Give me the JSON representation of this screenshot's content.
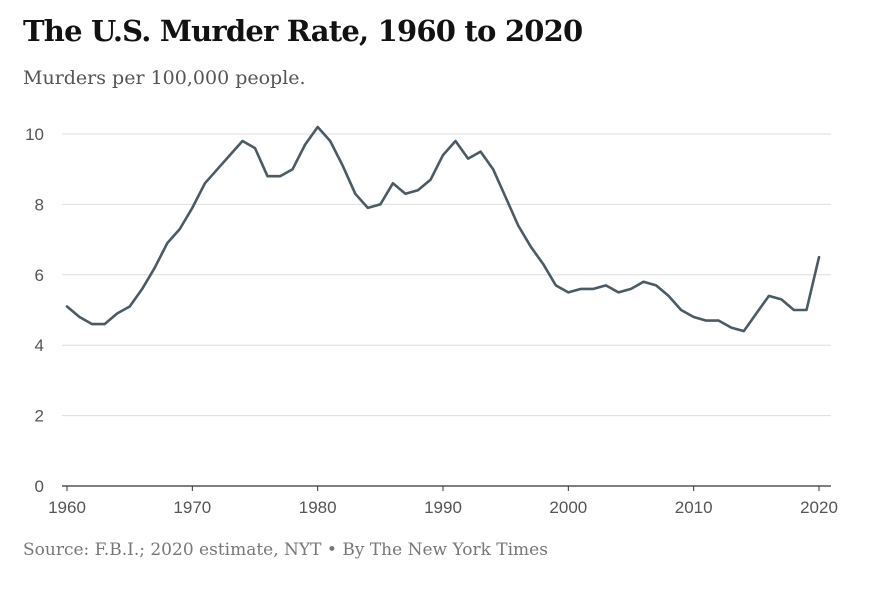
{
  "chart_data": {
    "type": "line",
    "title": "The U.S. Murder Rate, 1960 to 2020",
    "subtitle": "Murders per 100,000 people.",
    "source": "Source: F.B.I.; 2020 estimate, NYT • By The New York Times",
    "xlabel": "",
    "ylabel": "",
    "xlim": [
      1960,
      2020
    ],
    "ylim": [
      0,
      10
    ],
    "xticks": [
      1960,
      1970,
      1980,
      1990,
      2000,
      2010,
      2020
    ],
    "yticks": [
      0,
      2,
      4,
      6,
      8,
      10
    ],
    "grid": "horizontal",
    "legend": "none",
    "line_color": "#4b5a63",
    "series": [
      {
        "x": [
          1960,
          1961,
          1962,
          1963,
          1964,
          1965,
          1966,
          1967,
          1968,
          1969,
          1970,
          1971,
          1972,
          1973,
          1974,
          1975,
          1976,
          1977,
          1978,
          1979,
          1980,
          1981,
          1982,
          1983,
          1984,
          1985,
          1986,
          1987,
          1988,
          1989,
          1990,
          1991,
          1992,
          1993,
          1994,
          1995,
          1996,
          1997,
          1998,
          1999,
          2000,
          2001,
          2002,
          2003,
          2004,
          2005,
          2006,
          2007,
          2008,
          2009,
          2010,
          2011,
          2012,
          2013,
          2014,
          2015,
          2016,
          2017,
          2018,
          2019,
          2020
        ],
        "y": [
          5.1,
          4.8,
          4.6,
          4.6,
          4.9,
          5.1,
          5.6,
          6.2,
          6.9,
          7.3,
          7.9,
          8.6,
          9.0,
          9.4,
          9.8,
          9.6,
          8.8,
          8.8,
          9.0,
          9.7,
          10.2,
          9.8,
          9.1,
          8.3,
          7.9,
          8.0,
          8.6,
          8.3,
          8.4,
          8.7,
          9.4,
          9.8,
          9.3,
          9.5,
          9.0,
          8.2,
          7.4,
          6.8,
          6.3,
          5.7,
          5.5,
          5.6,
          5.6,
          5.7,
          5.5,
          5.6,
          5.8,
          5.7,
          5.4,
          5.0,
          4.8,
          4.7,
          4.7,
          4.5,
          4.4,
          4.9,
          5.4,
          5.3,
          5.0,
          5.0,
          6.5
        ]
      }
    ]
  }
}
